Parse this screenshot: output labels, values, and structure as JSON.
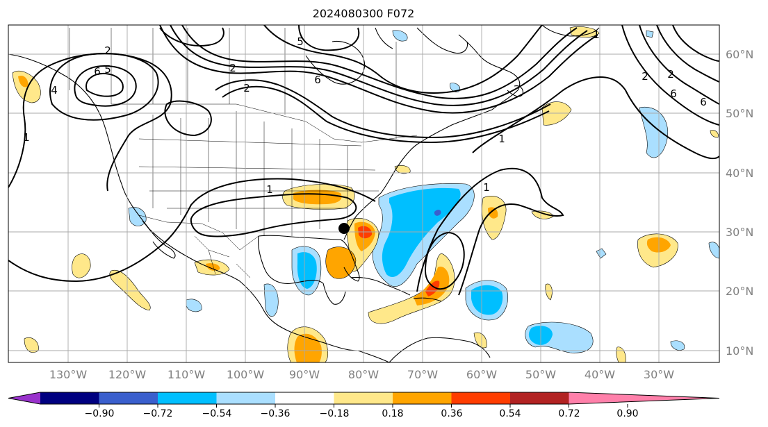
{
  "title": "2024080300 F072",
  "lat_labels": [
    "60°N",
    "50°N",
    "40°N",
    "30°N",
    "20°N",
    "10°N"
  ],
  "lon_labels": [
    "130°W",
    "120°W",
    "110°W",
    "100°W",
    "90°W",
    "80°W",
    "70°W",
    "60°W",
    "50°W",
    "40°W",
    "30°W"
  ],
  "colorbar": {
    "labels": [
      "−0.90",
      "−0.72",
      "−0.54",
      "−0.36",
      "−0.18",
      "0.18",
      "0.36",
      "0.54",
      "0.72",
      "0.90"
    ],
    "colors": [
      "#9932cc",
      "#000080",
      "#3a5fcd",
      "#00bfff",
      "#aadfff",
      "#ffffff",
      "#ffe88a",
      "#ffa500",
      "#ff3d00",
      "#b22222",
      "#ff80aa"
    ]
  },
  "contour_labels": [
    "2",
    "5",
    "6",
    "4",
    "2",
    "1",
    "1",
    "1",
    "1",
    "1",
    "2",
    "5",
    "6",
    "2",
    "6",
    "2",
    "6"
  ],
  "marker": {
    "name": "black-dot",
    "color": "#000000"
  }
}
